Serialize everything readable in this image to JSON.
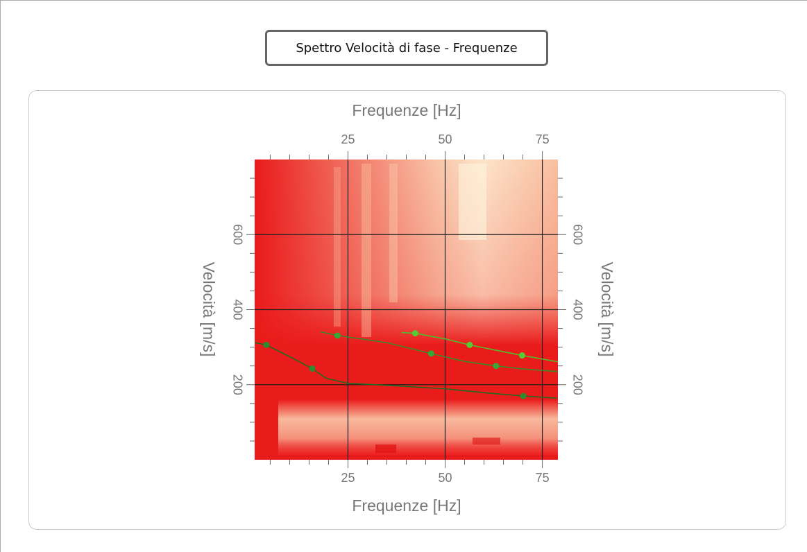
{
  "header": {
    "title": "Spettro Velocità di fase - Frequenze"
  },
  "chart_data": {
    "type": "line",
    "x_label": "Frequenze [Hz]",
    "y_label": "Velocità [m/s]",
    "xlim": [
      1,
      79
    ],
    "ylim": [
      0,
      800
    ],
    "xticks": [
      25,
      50,
      75
    ],
    "yticks": [
      200,
      400,
      600
    ],
    "minor_xticks": [
      5,
      10,
      15,
      20,
      30,
      35,
      40,
      45,
      55,
      60,
      65,
      70
    ],
    "minor_yticks": [
      50,
      100,
      150,
      250,
      300,
      350,
      450,
      500,
      550,
      650,
      700,
      750
    ],
    "grid": true,
    "series": [
      {
        "color": "#1f6b1f",
        "marker_color": "#2e8b2e",
        "x": [
          1,
          4,
          8.6,
          12.2,
          15.8,
          19.4,
          24.8,
          35.6,
          50,
          60.8,
          70.1,
          78.7
        ],
        "values": [
          312,
          306,
          282,
          263,
          243,
          217,
          204,
          198,
          189,
          178,
          170,
          164
        ],
        "points_x": [
          4,
          15.8,
          70.1
        ],
        "points_y": [
          306,
          243,
          170
        ]
      },
      {
        "color": "#3a8a2a",
        "marker_color": "#33aa33",
        "x": [
          18,
          22.3,
          35,
          46.4,
          55,
          63.1,
          70,
          79
        ],
        "values": [
          341,
          331,
          312,
          283,
          262,
          250,
          242,
          235
        ],
        "points_x": [
          22.3,
          46.4,
          63.1
        ],
        "points_y": [
          331,
          283,
          250
        ]
      },
      {
        "color": "#4cbf2c",
        "marker_color": "#55cc33",
        "x": [
          38.8,
          42.3,
          50,
          56.3,
          63,
          69.8,
          79
        ],
        "values": [
          339,
          337,
          322,
          306,
          292,
          278,
          261
        ],
        "points_x": [
          42.3,
          56.3,
          69.8
        ],
        "points_y": [
          337,
          306,
          278
        ]
      }
    ]
  }
}
